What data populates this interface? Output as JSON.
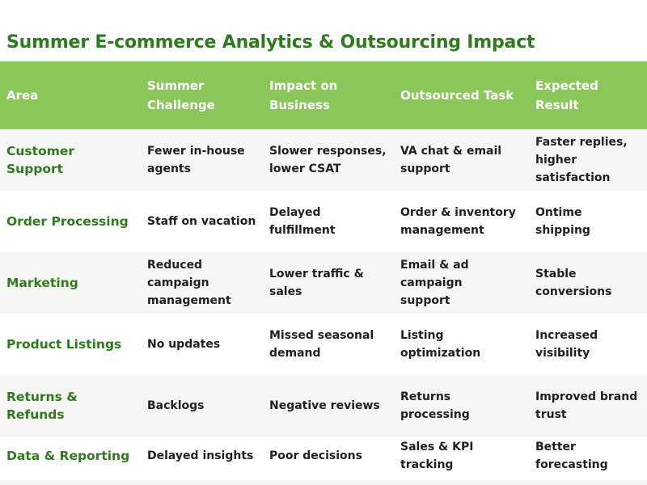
{
  "title": "Summer E-commerce Analytics & Outsourcing Impact",
  "table": {
    "headers": [
      "Area",
      "Summer\nChallenge",
      "Impact on\nBusiness",
      "Outsourced Task",
      "Expected Result"
    ],
    "rows": [
      [
        "Customer Support",
        "Fewer in-house\nagents",
        "Slower responses,\nlower CSAT",
        "VA chat & email\nsupport",
        "Faster replies,\nhigher satisfaction"
      ],
      [
        "Order Processing",
        "Staff on vacation",
        "Delayed fulfillment",
        "Order & inventory\nmanagement",
        "Ontime shipping"
      ],
      [
        "Marketing",
        "Reduced campaign\nmanagement",
        "Lower traffic & sales",
        "Email & ad campaign\nsupport",
        "Stable conversions"
      ],
      [
        "Product Listings",
        "No updates",
        "Missed seasonal\ndemand",
        "Listing optimization",
        "Increased visibility"
      ],
      [
        "Returns & Refunds",
        "Backlogs",
        "Negative reviews",
        "Returns processing",
        "Improved brand\ntrust"
      ],
      [
        "Data & Reporting",
        "Delayed insights",
        "Poor decisions",
        "Sales & KPI tracking",
        "Better forecasting"
      ]
    ]
  },
  "colors": {
    "header_bg": "#8bc65a",
    "title_green": "#2f7a1f",
    "row_alt_bg": "#f6f7f5"
  }
}
